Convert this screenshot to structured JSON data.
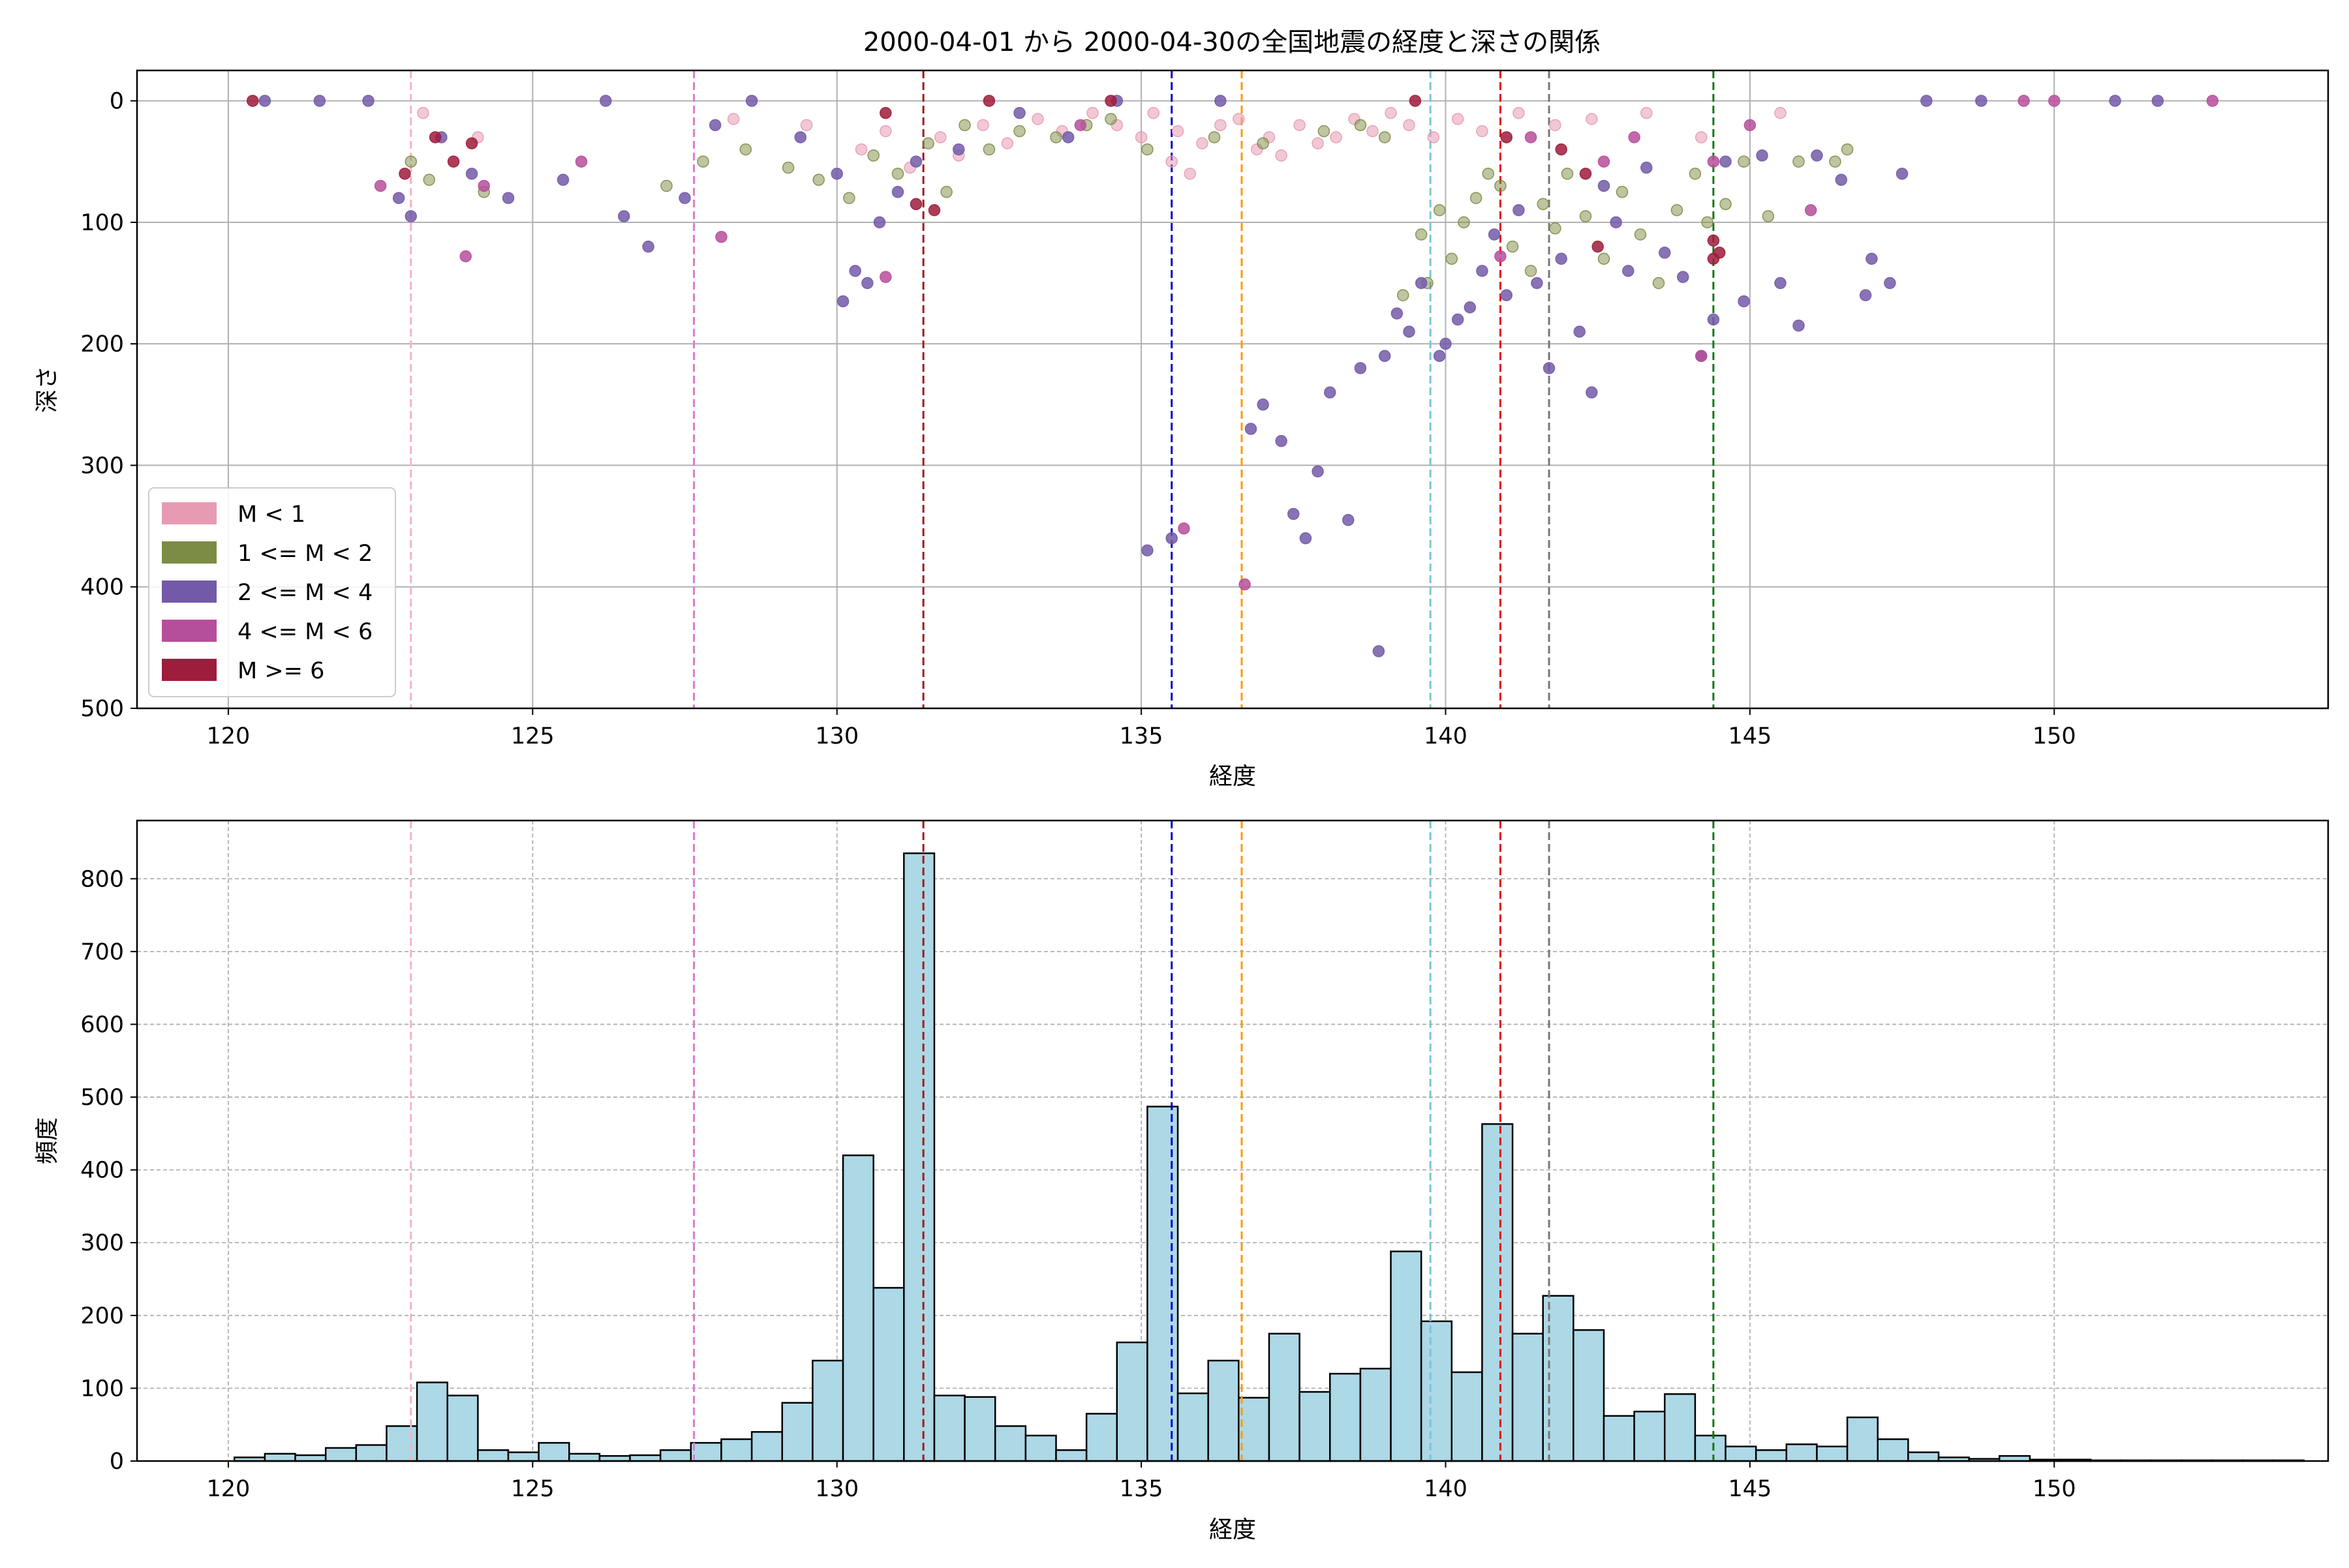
{
  "title": "2000-04-01 から 2000-04-30の全国地震の経度と深さの関係",
  "colors": {
    "m_lt1": "#e79bb3",
    "m_1_2": "#7d8c44",
    "m_2_4": "#735aa8",
    "m_4_6": "#b64f9b",
    "m_ge6": "#9e1c3c",
    "hist_fill": "#add8e6",
    "hist_edge": "#000000"
  },
  "chart_data": [
    {
      "type": "scatter",
      "xlabel": "経度",
      "ylabel": "深さ",
      "xlim": [
        118.5,
        154.5
      ],
      "ylim": [
        500,
        -25
      ],
      "y_inverted": true,
      "xticks": [
        "120",
        "125",
        "130",
        "135",
        "140",
        "145",
        "150"
      ],
      "yticks": [
        "0",
        "100",
        "200",
        "300",
        "400",
        "500"
      ],
      "grid": true,
      "legend_position": "lower-left",
      "legend": [
        "M < 1",
        "1 <= M < 2",
        "2 <= M < 4",
        "4 <= M < 6",
        "M >= 6"
      ],
      "vlines": [
        {
          "x": 123.0,
          "color": "#f4b3c2"
        },
        {
          "x": 127.65,
          "color": "#e07ad4"
        },
        {
          "x": 131.42,
          "color": "#9e1c1c"
        },
        {
          "x": 135.5,
          "color": "#0000cc"
        },
        {
          "x": 136.65,
          "color": "#ff9900"
        },
        {
          "x": 139.75,
          "color": "#78c4d8"
        },
        {
          "x": 140.9,
          "color": "#dd1111"
        },
        {
          "x": 141.7,
          "color": "#777777"
        },
        {
          "x": 144.4,
          "color": "#117711"
        }
      ],
      "series": [
        {
          "name": "M < 1",
          "points": [
            [
              123.2,
              10
            ],
            [
              124.1,
              30
            ],
            [
              128.3,
              15
            ],
            [
              129.5,
              20
            ],
            [
              130.4,
              40
            ],
            [
              130.8,
              25
            ],
            [
              131.2,
              55
            ],
            [
              131.7,
              30
            ],
            [
              132.0,
              45
            ],
            [
              132.4,
              20
            ],
            [
              132.8,
              35
            ],
            [
              133.3,
              15
            ],
            [
              133.7,
              25
            ],
            [
              134.2,
              10
            ],
            [
              134.6,
              20
            ],
            [
              135.0,
              30
            ],
            [
              135.2,
              10
            ],
            [
              135.5,
              50
            ],
            [
              135.6,
              25
            ],
            [
              135.8,
              60
            ],
            [
              136.0,
              35
            ],
            [
              136.3,
              20
            ],
            [
              136.6,
              15
            ],
            [
              136.9,
              40
            ],
            [
              137.1,
              30
            ],
            [
              137.3,
              45
            ],
            [
              137.6,
              20
            ],
            [
              137.9,
              35
            ],
            [
              138.2,
              30
            ],
            [
              138.5,
              15
            ],
            [
              138.8,
              25
            ],
            [
              139.1,
              10
            ],
            [
              139.4,
              20
            ],
            [
              139.8,
              30
            ],
            [
              140.2,
              15
            ],
            [
              140.6,
              25
            ],
            [
              141.2,
              10
            ],
            [
              141.8,
              20
            ],
            [
              142.4,
              15
            ],
            [
              143.3,
              10
            ],
            [
              144.2,
              30
            ],
            [
              145.5,
              10
            ]
          ]
        },
        {
          "name": "1 <= M < 2",
          "points": [
            [
              123.0,
              50
            ],
            [
              123.3,
              65
            ],
            [
              124.2,
              75
            ],
            [
              127.2,
              70
            ],
            [
              127.8,
              50
            ],
            [
              128.5,
              40
            ],
            [
              129.2,
              55
            ],
            [
              129.7,
              65
            ],
            [
              130.2,
              80
            ],
            [
              130.6,
              45
            ],
            [
              131.0,
              60
            ],
            [
              131.5,
              35
            ],
            [
              131.8,
              75
            ],
            [
              132.1,
              20
            ],
            [
              132.5,
              40
            ],
            [
              133.0,
              25
            ],
            [
              133.6,
              30
            ],
            [
              134.1,
              20
            ],
            [
              134.5,
              15
            ],
            [
              135.1,
              40
            ],
            [
              136.2,
              30
            ],
            [
              137.0,
              35
            ],
            [
              138.0,
              25
            ],
            [
              138.6,
              20
            ],
            [
              139.0,
              30
            ],
            [
              139.3,
              160
            ],
            [
              139.6,
              110
            ],
            [
              139.7,
              150
            ],
            [
              139.9,
              90
            ],
            [
              140.1,
              130
            ],
            [
              140.3,
              100
            ],
            [
              140.5,
              80
            ],
            [
              140.7,
              60
            ],
            [
              140.9,
              70
            ],
            [
              141.1,
              120
            ],
            [
              141.4,
              140
            ],
            [
              141.6,
              85
            ],
            [
              141.8,
              105
            ],
            [
              142.0,
              60
            ],
            [
              142.3,
              95
            ],
            [
              142.6,
              130
            ],
            [
              142.9,
              75
            ],
            [
              143.2,
              110
            ],
            [
              143.5,
              150
            ],
            [
              143.8,
              90
            ],
            [
              144.1,
              60
            ],
            [
              144.3,
              100
            ],
            [
              144.6,
              85
            ],
            [
              144.9,
              50
            ],
            [
              145.3,
              95
            ],
            [
              145.8,
              50
            ],
            [
              146.4,
              50
            ],
            [
              146.6,
              40
            ]
          ]
        },
        {
          "name": "2 <= M < 4",
          "points": [
            [
              120.6,
              0
            ],
            [
              121.5,
              0
            ],
            [
              122.3,
              0
            ],
            [
              122.8,
              80
            ],
            [
              123.0,
              95
            ],
            [
              123.5,
              30
            ],
            [
              124.0,
              60
            ],
            [
              124.6,
              80
            ],
            [
              125.5,
              65
            ],
            [
              126.2,
              0
            ],
            [
              126.5,
              95
            ],
            [
              126.9,
              120
            ],
            [
              127.5,
              80
            ],
            [
              128.0,
              20
            ],
            [
              128.6,
              0
            ],
            [
              129.4,
              30
            ],
            [
              130.0,
              60
            ],
            [
              130.1,
              165
            ],
            [
              130.3,
              140
            ],
            [
              130.5,
              150
            ],
            [
              130.7,
              100
            ],
            [
              131.0,
              75
            ],
            [
              131.3,
              50
            ],
            [
              132.0,
              40
            ],
            [
              133.0,
              10
            ],
            [
              133.8,
              30
            ],
            [
              134.6,
              0
            ],
            [
              135.1,
              370
            ],
            [
              135.5,
              360
            ],
            [
              136.3,
              0
            ],
            [
              136.8,
              270
            ],
            [
              137.0,
              250
            ],
            [
              137.3,
              280
            ],
            [
              137.5,
              340
            ],
            [
              137.7,
              360
            ],
            [
              137.9,
              305
            ],
            [
              138.1,
              240
            ],
            [
              138.4,
              345
            ],
            [
              138.6,
              220
            ],
            [
              138.9,
              453
            ],
            [
              139.0,
              210
            ],
            [
              139.2,
              175
            ],
            [
              139.4,
              190
            ],
            [
              139.6,
              150
            ],
            [
              139.9,
              210
            ],
            [
              140.0,
              200
            ],
            [
              140.2,
              180
            ],
            [
              140.4,
              170
            ],
            [
              140.6,
              140
            ],
            [
              140.8,
              110
            ],
            [
              141.0,
              160
            ],
            [
              141.2,
              90
            ],
            [
              141.5,
              150
            ],
            [
              141.7,
              220
            ],
            [
              141.9,
              130
            ],
            [
              142.2,
              190
            ],
            [
              142.4,
              240
            ],
            [
              142.6,
              70
            ],
            [
              142.8,
              100
            ],
            [
              143.0,
              140
            ],
            [
              143.3,
              55
            ],
            [
              143.6,
              125
            ],
            [
              143.9,
              145
            ],
            [
              144.2,
              210
            ],
            [
              144.4,
              180
            ],
            [
              144.6,
              50
            ],
            [
              144.9,
              165
            ],
            [
              145.2,
              45
            ],
            [
              145.5,
              150
            ],
            [
              145.8,
              185
            ],
            [
              146.1,
              45
            ],
            [
              146.5,
              65
            ],
            [
              146.9,
              160
            ],
            [
              147.0,
              130
            ],
            [
              147.3,
              150
            ],
            [
              147.5,
              60
            ],
            [
              147.9,
              0
            ],
            [
              148.8,
              0
            ],
            [
              151.0,
              0
            ],
            [
              151.7,
              0
            ]
          ]
        },
        {
          "name": "4 <= M < 6",
          "points": [
            [
              122.5,
              70
            ],
            [
              123.9,
              128
            ],
            [
              124.2,
              70
            ],
            [
              125.8,
              50
            ],
            [
              128.1,
              112
            ],
            [
              130.8,
              145
            ],
            [
              134.0,
              20
            ],
            [
              135.7,
              352
            ],
            [
              136.7,
              398
            ],
            [
              140.9,
              128
            ],
            [
              141.4,
              30
            ],
            [
              142.6,
              50
            ],
            [
              143.1,
              30
            ],
            [
              144.2,
              210
            ],
            [
              144.4,
              50
            ],
            [
              145.0,
              20
            ],
            [
              146.0,
              90
            ],
            [
              149.5,
              0
            ],
            [
              150.0,
              0
            ],
            [
              152.6,
              0
            ]
          ]
        },
        {
          "name": "M >= 6",
          "points": [
            [
              120.4,
              0
            ],
            [
              122.9,
              60
            ],
            [
              123.4,
              30
            ],
            [
              123.7,
              50
            ],
            [
              124.0,
              35
            ],
            [
              130.8,
              10
            ],
            [
              131.3,
              85
            ],
            [
              131.6,
              90
            ],
            [
              132.5,
              0
            ],
            [
              134.5,
              0
            ],
            [
              139.5,
              0
            ],
            [
              141.0,
              30
            ],
            [
              141.9,
              40
            ],
            [
              142.3,
              60
            ],
            [
              142.5,
              120
            ],
            [
              144.4,
              115
            ],
            [
              144.5,
              125
            ],
            [
              144.4,
              130
            ]
          ]
        }
      ]
    },
    {
      "type": "bar",
      "xlabel": "経度",
      "ylabel": "頻度",
      "xlim": [
        118.5,
        154.5
      ],
      "ylim": [
        0,
        880
      ],
      "xticks": [
        "120",
        "125",
        "130",
        "135",
        "140",
        "145",
        "150"
      ],
      "yticks": [
        "0",
        "100",
        "200",
        "300",
        "400",
        "500",
        "600",
        "700",
        "800"
      ],
      "grid": true,
      "bin_start": 120.1,
      "bin_width": 0.5,
      "values": [
        5,
        10,
        8,
        18,
        22,
        48,
        108,
        90,
        15,
        12,
        25,
        10,
        7,
        8,
        15,
        25,
        30,
        40,
        80,
        138,
        420,
        238,
        835,
        90,
        88,
        48,
        35,
        15,
        65,
        163,
        487,
        93,
        138,
        87,
        175,
        95,
        120,
        127,
        288,
        192,
        122,
        463,
        175,
        227,
        180,
        62,
        68,
        92,
        35,
        20,
        15,
        23,
        20,
        60,
        30,
        12,
        5,
        3,
        7,
        2,
        2,
        1,
        1,
        1,
        1,
        1,
        1,
        1
      ],
      "vlines": [
        {
          "x": 123.0,
          "color": "#f4b3c2"
        },
        {
          "x": 127.65,
          "color": "#e07ad4"
        },
        {
          "x": 131.42,
          "color": "#9e1c1c"
        },
        {
          "x": 135.5,
          "color": "#0000cc"
        },
        {
          "x": 136.65,
          "color": "#ff9900"
        },
        {
          "x": 139.75,
          "color": "#78c4d8"
        },
        {
          "x": 140.9,
          "color": "#dd1111"
        },
        {
          "x": 141.7,
          "color": "#777777"
        },
        {
          "x": 144.4,
          "color": "#117711"
        }
      ]
    }
  ]
}
